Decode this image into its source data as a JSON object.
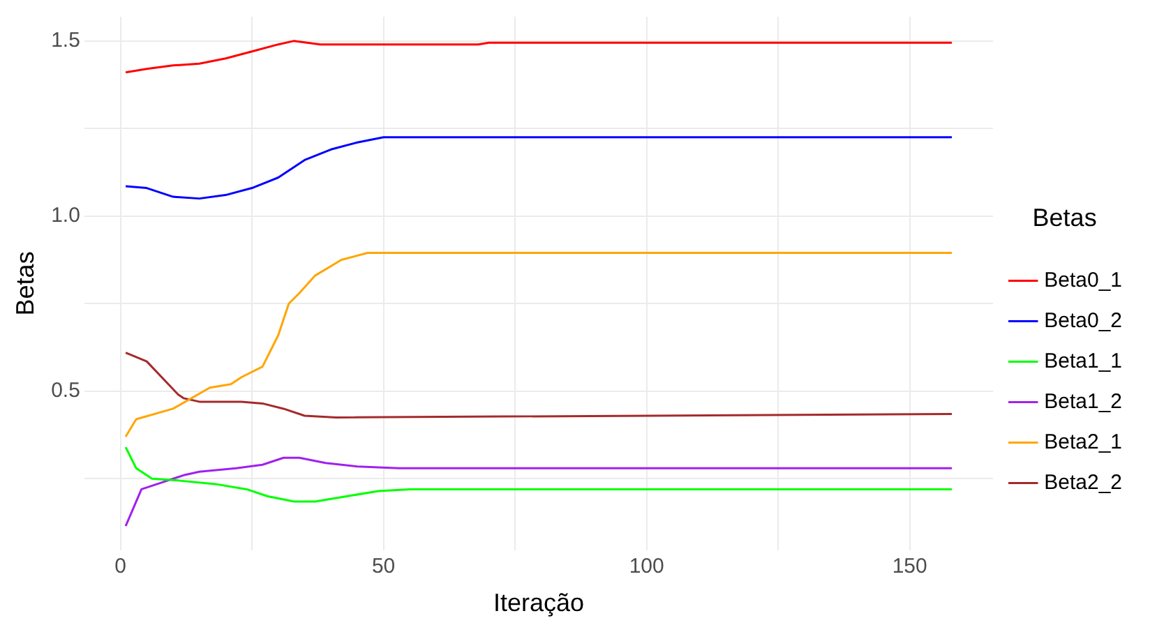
{
  "chart_data": {
    "type": "line",
    "xlabel": "Iteração",
    "ylabel": "Betas",
    "legend_title": "Betas",
    "legend": "right",
    "grid": true,
    "marker": "none",
    "line_style": "solid",
    "xlim": [
      -6.85,
      165.85
    ],
    "xticks": [
      {
        "value": 25,
        "label": null
      },
      0,
      50,
      {
        "value": 75,
        "label": null
      },
      100,
      {
        "value": 125,
        "label": null
      },
      150
    ],
    "ylim": [
      0.046,
      1.569
    ],
    "yticks": [
      {
        "value": 0.25,
        "label": null
      },
      {
        "value": 0.5,
        "label": "0.5"
      },
      {
        "value": 0.75,
        "label": null
      },
      {
        "value": 1.0,
        "label": "1.0"
      },
      {
        "value": 1.25,
        "label": null
      },
      {
        "value": 1.5,
        "label": "1.5"
      }
    ],
    "series": [
      {
        "name": "Beta0_1",
        "color": "#ff0000",
        "x": [
          1,
          5,
          10,
          15,
          20,
          25,
          30,
          33,
          38,
          50,
          68,
          70,
          158
        ],
        "values": [
          1.41,
          1.42,
          1.43,
          1.435,
          1.45,
          1.47,
          1.49,
          1.5,
          1.49,
          1.49,
          1.49,
          1.495,
          1.495
        ]
      },
      {
        "name": "Beta0_2",
        "color": "#0000ff",
        "x": [
          1,
          5,
          10,
          15,
          20,
          25,
          30,
          35,
          40,
          45,
          50,
          158
        ],
        "values": [
          1.085,
          1.08,
          1.055,
          1.05,
          1.06,
          1.08,
          1.11,
          1.16,
          1.19,
          1.21,
          1.225,
          1.225
        ]
      },
      {
        "name": "Beta1_1",
        "color": "#00ff00",
        "x": [
          1,
          3,
          6,
          11,
          18,
          24,
          28,
          33,
          37,
          43,
          49,
          55,
          158
        ],
        "values": [
          0.34,
          0.28,
          0.25,
          0.245,
          0.235,
          0.22,
          0.2,
          0.185,
          0.185,
          0.2,
          0.215,
          0.22,
          0.22
        ]
      },
      {
        "name": "Beta1_2",
        "color": "#a020f0",
        "x": [
          1,
          4,
          8,
          12,
          15,
          22,
          27,
          31,
          34,
          39,
          45,
          53,
          158
        ],
        "values": [
          0.115,
          0.22,
          0.24,
          0.26,
          0.27,
          0.28,
          0.29,
          0.31,
          0.31,
          0.295,
          0.285,
          0.28,
          0.28
        ]
      },
      {
        "name": "Beta2_1",
        "color": "#ffa500",
        "x": [
          1,
          3,
          10,
          17,
          21,
          23,
          27,
          30,
          32,
          34,
          37,
          42,
          47,
          158
        ],
        "values": [
          0.37,
          0.42,
          0.45,
          0.51,
          0.52,
          0.54,
          0.57,
          0.66,
          0.75,
          0.78,
          0.83,
          0.875,
          0.895,
          0.895
        ]
      },
      {
        "name": "Beta2_2",
        "color": "#a52a2a",
        "x": [
          1,
          5,
          11,
          12,
          15,
          23,
          27,
          31,
          35,
          41,
          158
        ],
        "values": [
          0.61,
          0.585,
          0.49,
          0.48,
          0.47,
          0.47,
          0.465,
          0.45,
          0.43,
          0.425,
          0.435
        ]
      }
    ]
  }
}
